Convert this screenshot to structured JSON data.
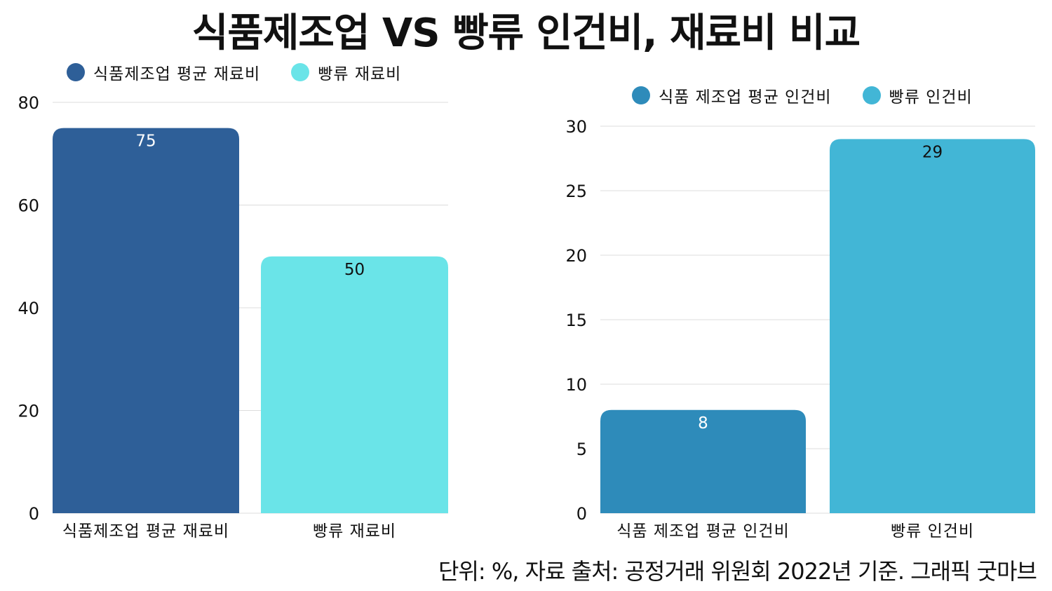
{
  "title": "식품제조업 VS 빵류 인건비, 재료비 비교",
  "footer": "단위: %, 자료 출처: 공정거래 위원회 2022년 기준. 그래픽 굿마브",
  "chart_data": [
    {
      "type": "bar",
      "title": "",
      "categories": [
        "식품제조업 평균 재료비",
        "빵류 재료비"
      ],
      "values": [
        75,
        50
      ],
      "colors": [
        "#2e5f98",
        "#6ae4e8"
      ],
      "label_colors": [
        "#ffffff",
        "#111111"
      ],
      "legend": [
        "식품제조업 평균 재료비",
        "빵류 재료비"
      ],
      "legend_position": "top-left",
      "ylim": [
        0,
        80
      ],
      "yticks": [
        0,
        20,
        40,
        60,
        80
      ],
      "grid": true
    },
    {
      "type": "bar",
      "title": "",
      "categories": [
        "식품 제조업 평균 인건비",
        "빵류 인건비"
      ],
      "values": [
        8,
        29
      ],
      "colors": [
        "#2e8bba",
        "#42b6d6"
      ],
      "label_colors": [
        "#ffffff",
        "#111111"
      ],
      "legend": [
        "식품 제조업 평균 인건비",
        "빵류 인건비"
      ],
      "legend_position": "top-right",
      "ylim": [
        0,
        30
      ],
      "yticks": [
        0,
        5,
        10,
        15,
        20,
        25,
        30
      ],
      "grid": true
    }
  ]
}
